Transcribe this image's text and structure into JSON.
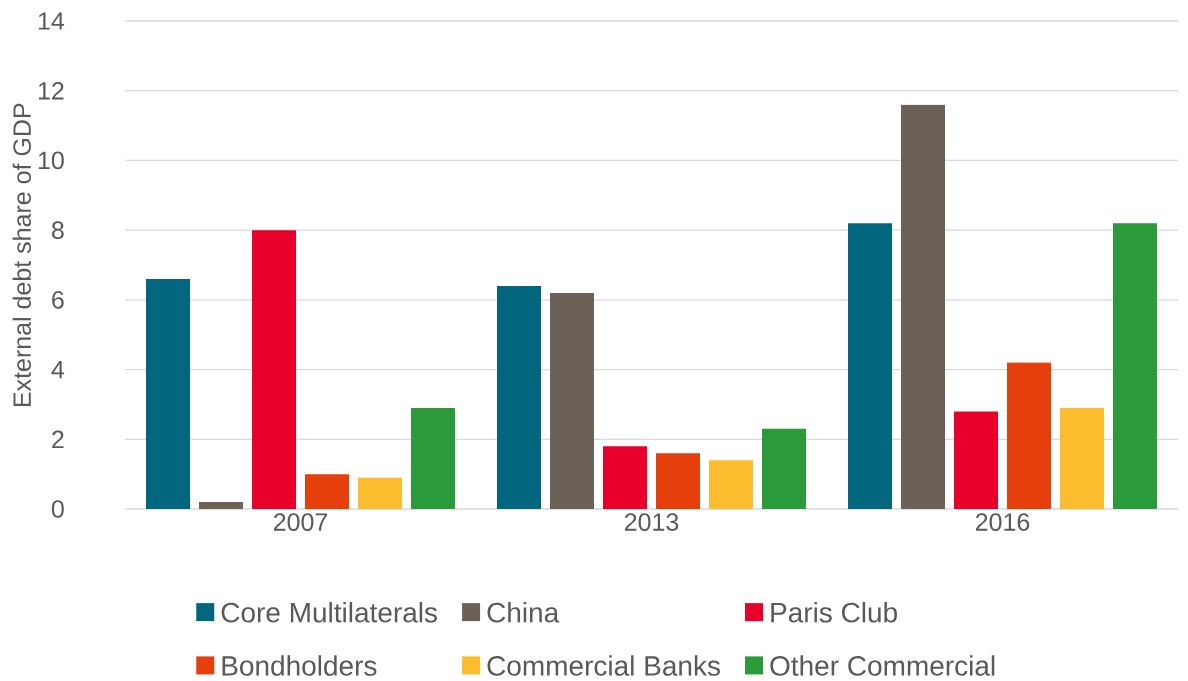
{
  "chart_data": {
    "type": "bar",
    "ylabel": "External debt share of GDP",
    "categories": [
      "2007",
      "2013",
      "2016"
    ],
    "series": [
      {
        "name": "Core Multilaterals",
        "color": "#03667f",
        "values": [
          6.6,
          6.4,
          8.2
        ]
      },
      {
        "name": "China",
        "color": "#6b6157",
        "values": [
          0.2,
          6.2,
          11.6
        ]
      },
      {
        "name": "Paris Club",
        "color": "#e8002a",
        "values": [
          8.0,
          1.8,
          2.8
        ]
      },
      {
        "name": "Bondholders",
        "color": "#e53f0c",
        "values": [
          1.0,
          1.6,
          4.2
        ]
      },
      {
        "name": "Commercial Banks",
        "color": "#fbbd2e",
        "values": [
          0.9,
          1.4,
          2.9
        ]
      },
      {
        "name": "Other Commercial",
        "color": "#2b9a3b",
        "values": [
          2.9,
          2.3,
          8.2
        ]
      }
    ],
    "ylim": [
      0,
      14
    ],
    "yticks": [
      0,
      2,
      4,
      6,
      8,
      10,
      12,
      14
    ],
    "grid": "y",
    "legend": "bottom"
  }
}
